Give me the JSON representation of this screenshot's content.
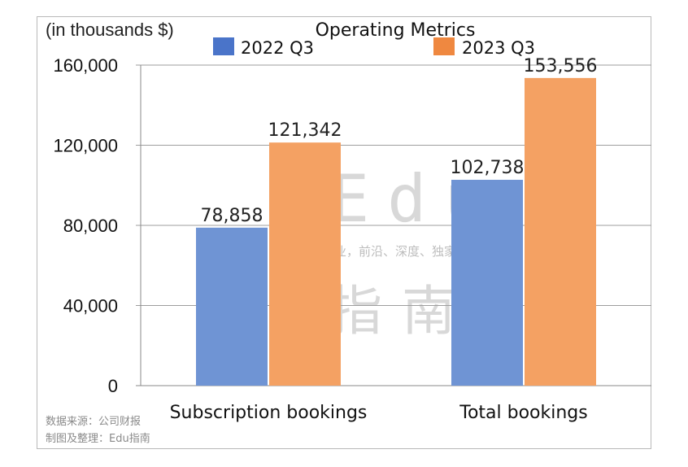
{
  "chart_data": {
    "type": "bar",
    "title": "Operating Metrics",
    "unit_note": "(in thousands $)",
    "categories": [
      "Subscription bookings",
      "Total bookings"
    ],
    "series": [
      {
        "name": "2022 Q3",
        "values": [
          78858,
          102738
        ],
        "labels": [
          "78,858",
          "102,738"
        ],
        "color": "#6f94d4"
      },
      {
        "name": "2023 Q3",
        "values": [
          121342,
          153556
        ],
        "labels": [
          "121,342",
          "153,556"
        ],
        "color": "#f4a163"
      }
    ],
    "legend_colors": [
      "#4a74c9",
      "#ef8840"
    ],
    "yticks": [
      0,
      40000,
      80000,
      120000,
      160000
    ],
    "ytick_labels": [
      "0",
      "40,000",
      "80,000",
      "120,000",
      "160,000"
    ],
    "ylim": [
      0,
      160000
    ],
    "grid": true,
    "legend_position": "top"
  },
  "source": {
    "line1": "数据来源：公司财报",
    "line2": "制图及整理：Edu指南"
  },
  "watermark": {
    "main": "Edu",
    "slogan": "教育行业，前沿、深度、独家",
    "cn": "指南"
  }
}
